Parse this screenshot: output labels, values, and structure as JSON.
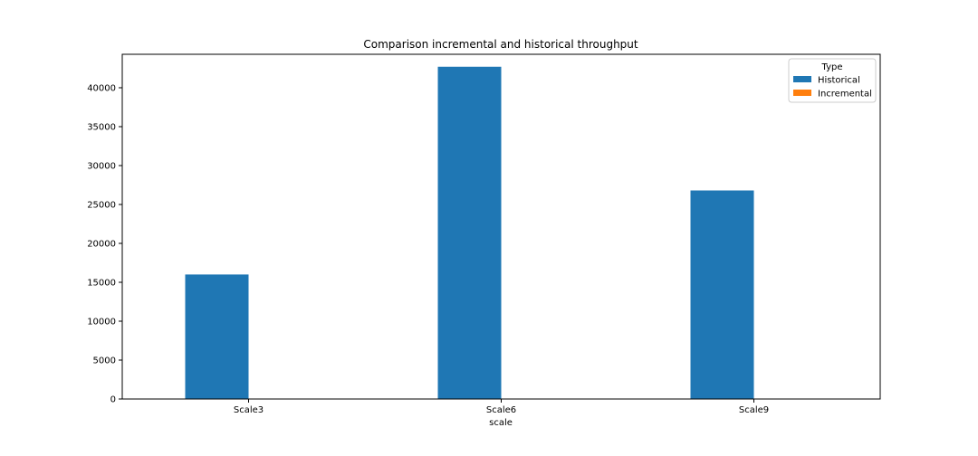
{
  "chart_data": {
    "type": "bar",
    "title": "Comparison incremental and historical throughput",
    "xlabel": "scale",
    "ylabel": "",
    "categories": [
      "Scale3",
      "Scale6",
      "Scale9"
    ],
    "series": [
      {
        "name": "Historical",
        "values": [
          16000,
          42700,
          26800
        ],
        "color": "#1f77b4"
      },
      {
        "name": "Incremental",
        "values": [
          0,
          0,
          0
        ],
        "color": "#ff7f0e"
      }
    ],
    "ylim": [
      0,
      44300
    ],
    "yticks": [
      0,
      5000,
      10000,
      15000,
      20000,
      25000,
      30000,
      35000,
      40000
    ],
    "grid": false,
    "legend": {
      "title": "Type",
      "placement": "top-right"
    }
  }
}
